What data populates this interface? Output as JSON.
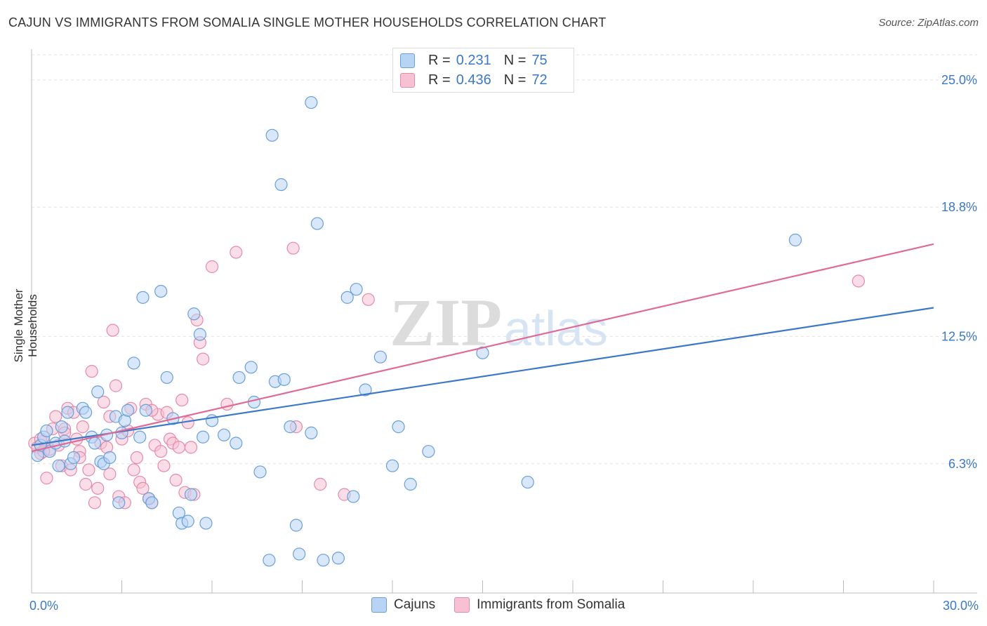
{
  "header": {
    "title": "CAJUN VS IMMIGRANTS FROM SOMALIA SINGLE MOTHER HOUSEHOLDS CORRELATION CHART",
    "source": "Source: ZipAtlas.com"
  },
  "legend_top": {
    "rows": [
      {
        "r_label": "R =",
        "r_value": "0.231",
        "n_label": "N =",
        "n_value": "75"
      },
      {
        "r_label": "R =",
        "r_value": "0.436",
        "n_label": "N =",
        "n_value": "72"
      }
    ]
  },
  "watermark": {
    "part1": "ZIP",
    "part2": "atlas"
  },
  "colors": {
    "cajuns_fill": "#b8d4f5",
    "cajuns_stroke": "#6a9fd8",
    "cajuns_line": "#3b78c9",
    "somalia_fill": "#f7c1d3",
    "somalia_stroke": "#e58aa8",
    "somalia_line": "#e06a96",
    "axis_text": "#3b78c9",
    "grid": "#e2e2e2"
  },
  "chart_data": {
    "type": "scatter",
    "title": "CAJUN VS IMMIGRANTS FROM SOMALIA SINGLE MOTHER HOUSEHOLDS CORRELATION CHART",
    "xlabel": "",
    "ylabel": "Single Mother Households",
    "xlim": [
      0,
      30
    ],
    "ylim": [
      0,
      26.5
    ],
    "x_tick_labels": [
      "0.0%",
      "30.0%"
    ],
    "y_ticks": [
      6.3,
      12.5,
      18.8,
      25.0
    ],
    "y_tick_labels": [
      "6.3%",
      "12.5%",
      "18.8%",
      "25.0%"
    ],
    "legend_position": "top-center",
    "series": [
      {
        "name": "Cajuns",
        "r": 0.231,
        "n": 75,
        "trend": {
          "x": [
            0,
            30
          ],
          "y": [
            7.2,
            13.9
          ]
        },
        "points": [
          [
            0.2,
            6.7
          ],
          [
            0.3,
            7.2
          ],
          [
            0.4,
            7.6
          ],
          [
            0.5,
            7.9
          ],
          [
            0.6,
            6.9
          ],
          [
            0.8,
            7.3
          ],
          [
            0.9,
            6.2
          ],
          [
            1.0,
            8.1
          ],
          [
            1.1,
            7.4
          ],
          [
            1.2,
            8.8
          ],
          [
            1.3,
            6.3
          ],
          [
            1.4,
            6.6
          ],
          [
            1.7,
            9.0
          ],
          [
            1.8,
            8.8
          ],
          [
            2.0,
            7.6
          ],
          [
            2.1,
            7.3
          ],
          [
            2.2,
            9.8
          ],
          [
            2.3,
            6.4
          ],
          [
            2.4,
            6.3
          ],
          [
            2.5,
            7.7
          ],
          [
            2.6,
            6.6
          ],
          [
            2.8,
            8.6
          ],
          [
            2.9,
            4.4
          ],
          [
            3.0,
            7.8
          ],
          [
            3.1,
            8.4
          ],
          [
            3.2,
            8.9
          ],
          [
            3.4,
            11.2
          ],
          [
            3.6,
            7.6
          ],
          [
            3.7,
            14.4
          ],
          [
            3.8,
            8.9
          ],
          [
            3.9,
            4.6
          ],
          [
            4.0,
            4.4
          ],
          [
            4.3,
            14.7
          ],
          [
            4.5,
            10.5
          ],
          [
            4.7,
            8.5
          ],
          [
            4.9,
            3.9
          ],
          [
            5.0,
            3.4
          ],
          [
            5.2,
            3.5
          ],
          [
            5.3,
            4.8
          ],
          [
            5.4,
            13.6
          ],
          [
            5.6,
            12.6
          ],
          [
            5.7,
            7.6
          ],
          [
            5.8,
            3.4
          ],
          [
            6.0,
            8.4
          ],
          [
            6.4,
            7.7
          ],
          [
            6.8,
            7.3
          ],
          [
            6.9,
            10.5
          ],
          [
            7.3,
            11.0
          ],
          [
            7.4,
            9.3
          ],
          [
            7.6,
            5.9
          ],
          [
            7.9,
            1.6
          ],
          [
            8.0,
            22.3
          ],
          [
            8.1,
            10.3
          ],
          [
            8.3,
            19.9
          ],
          [
            8.4,
            10.4
          ],
          [
            8.6,
            8.1
          ],
          [
            8.8,
            3.3
          ],
          [
            8.9,
            1.9
          ],
          [
            9.3,
            7.8
          ],
          [
            9.3,
            23.9
          ],
          [
            9.5,
            18.0
          ],
          [
            9.7,
            1.6
          ],
          [
            10.2,
            1.7
          ],
          [
            10.5,
            14.4
          ],
          [
            10.7,
            4.7
          ],
          [
            10.8,
            14.8
          ],
          [
            11.1,
            9.9
          ],
          [
            11.6,
            11.5
          ],
          [
            12.0,
            6.2
          ],
          [
            12.2,
            8.1
          ],
          [
            12.6,
            5.3
          ],
          [
            13.2,
            6.9
          ],
          [
            15.0,
            11.7
          ],
          [
            16.5,
            5.4
          ],
          [
            25.4,
            17.2
          ]
        ]
      },
      {
        "name": "Immigrants from Somalia",
        "r": 0.436,
        "n": 72,
        "trend": {
          "x": [
            0,
            30
          ],
          "y": [
            6.9,
            17.0
          ]
        },
        "points": [
          [
            0.1,
            7.3
          ],
          [
            0.2,
            7.1
          ],
          [
            0.3,
            6.8
          ],
          [
            0.4,
            7.4
          ],
          [
            0.5,
            5.6
          ],
          [
            0.6,
            7.0
          ],
          [
            0.7,
            8.0
          ],
          [
            0.8,
            8.6
          ],
          [
            0.9,
            7.2
          ],
          [
            1.0,
            6.2
          ],
          [
            1.1,
            8.0
          ],
          [
            1.2,
            9.0
          ],
          [
            1.3,
            6.0
          ],
          [
            1.4,
            8.8
          ],
          [
            1.5,
            7.5
          ],
          [
            1.6,
            6.9
          ],
          [
            1.7,
            8.1
          ],
          [
            1.8,
            5.3
          ],
          [
            1.9,
            6.0
          ],
          [
            2.0,
            10.8
          ],
          [
            2.1,
            4.4
          ],
          [
            2.2,
            5.1
          ],
          [
            2.3,
            7.3
          ],
          [
            2.4,
            9.3
          ],
          [
            2.5,
            7.1
          ],
          [
            2.6,
            5.8
          ],
          [
            2.7,
            12.8
          ],
          [
            2.8,
            10.1
          ],
          [
            2.9,
            4.7
          ],
          [
            3.0,
            7.5
          ],
          [
            3.1,
            4.4
          ],
          [
            3.3,
            9.0
          ],
          [
            3.4,
            6.0
          ],
          [
            3.5,
            6.6
          ],
          [
            3.6,
            5.4
          ],
          [
            3.7,
            5.1
          ],
          [
            3.8,
            9.2
          ],
          [
            3.9,
            4.6
          ],
          [
            4.0,
            4.4
          ],
          [
            4.1,
            7.2
          ],
          [
            4.2,
            8.7
          ],
          [
            4.3,
            6.9
          ],
          [
            4.4,
            6.2
          ],
          [
            4.5,
            8.8
          ],
          [
            4.6,
            7.5
          ],
          [
            4.7,
            7.3
          ],
          [
            4.8,
            5.5
          ],
          [
            4.9,
            7.1
          ],
          [
            5.0,
            9.4
          ],
          [
            5.1,
            4.9
          ],
          [
            5.2,
            8.3
          ],
          [
            5.3,
            7.1
          ],
          [
            5.4,
            4.8
          ],
          [
            5.5,
            13.3
          ],
          [
            5.6,
            12.2
          ],
          [
            5.7,
            11.4
          ],
          [
            6.0,
            15.9
          ],
          [
            6.5,
            9.2
          ],
          [
            6.8,
            16.6
          ],
          [
            8.7,
            16.8
          ],
          [
            8.8,
            8.1
          ],
          [
            9.6,
            5.3
          ],
          [
            10.4,
            4.8
          ],
          [
            11.2,
            14.3
          ],
          [
            27.5,
            15.2
          ],
          [
            0.4,
            6.9
          ],
          [
            1.1,
            7.8
          ],
          [
            2.6,
            8.6
          ],
          [
            3.2,
            7.9
          ],
          [
            4.0,
            8.9
          ],
          [
            0.3,
            7.5
          ],
          [
            1.6,
            6.6
          ]
        ]
      }
    ]
  },
  "bottom_legend": {
    "items": [
      "Cajuns",
      "Immigrants from Somalia"
    ]
  },
  "axes": {
    "x_left": "0.0%",
    "x_right": "30.0%",
    "ylabel": "Single Mother Households"
  }
}
